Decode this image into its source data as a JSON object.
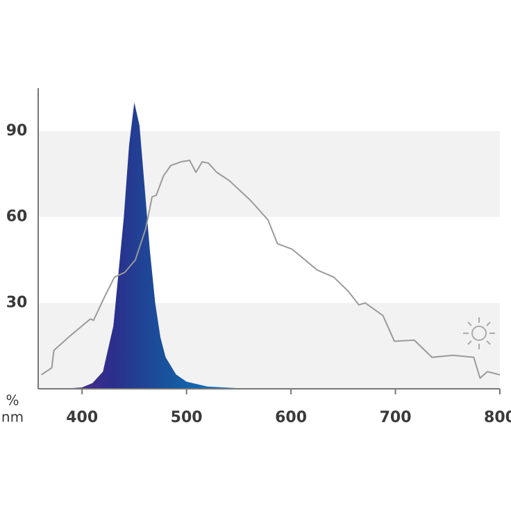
{
  "chart_data": {
    "type": "line",
    "x_label": "nm",
    "y_label": "%",
    "xlim": [
      358,
      800
    ],
    "ylim": [
      0,
      105
    ],
    "xticks": [
      400,
      500,
      600,
      700,
      800
    ],
    "yticks": [
      30,
      60,
      90
    ],
    "series": [
      {
        "type": "area",
        "color": "#1a7fc0",
        "x": [
          380,
          390,
          400,
          410,
          420,
          430,
          440,
          445,
          450,
          455,
          460,
          465,
          470,
          475,
          480,
          490,
          500,
          520,
          550,
          600,
          800
        ],
        "values": [
          0,
          0.2,
          0.5,
          2,
          6,
          22,
          60,
          85,
          100,
          92,
          70,
          48,
          30,
          18,
          11,
          5,
          2.5,
          0.8,
          0.2,
          0,
          0
        ]
      },
      {
        "type": "line",
        "color": "#9a9a9a",
        "x": [
          361,
          371,
          373,
          388,
          408,
          411,
          421,
          431,
          441,
          451,
          461,
          467,
          471,
          478,
          485,
          495,
          503,
          509,
          515,
          521,
          529,
          541,
          561,
          578,
          587,
          601,
          625,
          641,
          655,
          665,
          671,
          688,
          699,
          718,
          735,
          755,
          775,
          781,
          788,
          800
        ],
        "values": [
          4.9,
          7.3,
          13.4,
          18.3,
          24.4,
          23.9,
          31.7,
          39,
          40.7,
          45,
          56,
          67,
          67.6,
          74.4,
          78,
          79.3,
          79.8,
          75.6,
          79.3,
          78.8,
          75.6,
          72.7,
          65.9,
          59,
          50.7,
          48.8,
          41.5,
          39,
          34,
          29.3,
          30,
          25.6,
          16.6,
          17,
          11,
          11.7,
          11,
          3.7,
          6,
          4.9
        ]
      }
    ]
  }
}
